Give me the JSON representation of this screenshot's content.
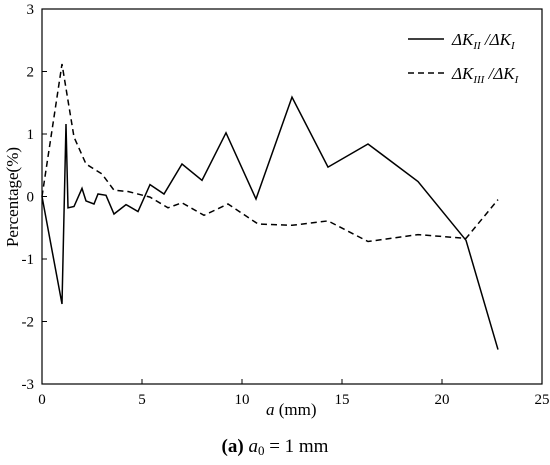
{
  "chart_data": {
    "type": "line",
    "xlabel": {
      "var": "a",
      "unit": " (mm)"
    },
    "ylabel": "Percentage(%)",
    "xlim": [
      0,
      25
    ],
    "ylim": [
      -3,
      3
    ],
    "xticks": [
      "0",
      "5",
      "10",
      "15",
      "20",
      "25"
    ],
    "yticks": [
      "-3",
      "-2",
      "-1",
      "0",
      "1",
      "2",
      "3"
    ],
    "grid": false,
    "legend_position": "top-right",
    "series": [
      {
        "name": {
          "delta": "ΔK",
          "num_sub": "II",
          "slash": " /",
          "den": "ΔK",
          "den_sub": "I"
        },
        "style": "solid",
        "x": [
          0,
          1.0,
          1.2,
          1.3,
          1.6,
          2.0,
          2.2,
          2.6,
          2.8,
          3.2,
          3.6,
          4.2,
          4.8,
          5.4,
          6.1,
          7.0,
          8.0,
          9.2,
          10.7,
          12.5,
          14.3,
          16.3,
          18.8,
          21.2,
          22.8
        ],
        "y": [
          0,
          -1.72,
          1.16,
          -0.18,
          -0.16,
          0.13,
          -0.07,
          -0.12,
          0.04,
          0.02,
          -0.28,
          -0.13,
          -0.24,
          0.19,
          0.04,
          0.52,
          0.26,
          1.02,
          -0.04,
          1.59,
          0.47,
          0.84,
          0.24,
          -0.7,
          -2.45
        ]
      },
      {
        "name": {
          "delta": "ΔK",
          "num_sub": "III",
          "slash": " /",
          "den": "ΔK",
          "den_sub": "I"
        },
        "style": "dashed",
        "x": [
          0,
          1.0,
          1.6,
          2.2,
          3.0,
          3.6,
          4.3,
          5.4,
          6.3,
          7.0,
          8.1,
          9.3,
          10.8,
          12.5,
          14.3,
          16.3,
          18.8,
          21.2,
          22.8
        ],
        "y": [
          0,
          2.12,
          0.95,
          0.52,
          0.36,
          0.1,
          0.08,
          -0.01,
          -0.18,
          -0.1,
          -0.3,
          -0.12,
          -0.44,
          -0.46,
          -0.39,
          -0.72,
          -0.61,
          -0.67,
          -0.05
        ]
      }
    ],
    "caption": {
      "panel": "(a)",
      "var": "a",
      "sub": "0",
      "rest": " = 1 mm"
    }
  }
}
